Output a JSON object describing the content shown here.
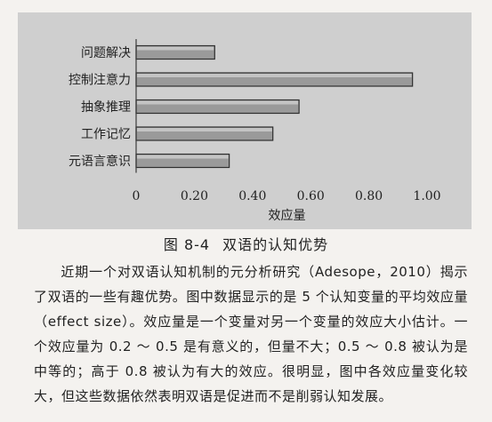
{
  "chart_data": {
    "type": "bar",
    "orientation": "horizontal",
    "categories": [
      "问题解决",
      "控制注意力",
      "抽象推理",
      "工作记忆",
      "元语言意识"
    ],
    "values": [
      0.27,
      0.95,
      0.56,
      0.47,
      0.32
    ],
    "xlabel": "效应量",
    "xlim": [
      0,
      1.0
    ],
    "ticks": [
      "0",
      "0.20",
      "0.40",
      "0.60",
      "0.80",
      "1.00"
    ],
    "tick_values": [
      0,
      0.2,
      0.4,
      0.6,
      0.8,
      1.0
    ],
    "grid": false,
    "legend": "none",
    "bar_color": "#9a9a9a",
    "panel_color": "#cfcfcf"
  },
  "caption": {
    "number": "图 8-4",
    "title": "双语的认知优势"
  },
  "paragraph": {
    "text": "近期一个对双语认知机制的元分析研究（Adesope，2010）揭示了双语的一些有趣优势。图中数据显示的是 5 个认知变量的平均效应量（effect size）。效应量是一个变量对另一个变量的效应大小估计。一个效应量为 0.2 ～ 0.5 是有意义的，但量不大；0.5 ～ 0.8 被认为是中等的；高于 0.8 被认为有大的效应。很明显，图中各效应量变化较大，但这些数据依然表明双语是促进而不是削弱认知发展。"
  }
}
